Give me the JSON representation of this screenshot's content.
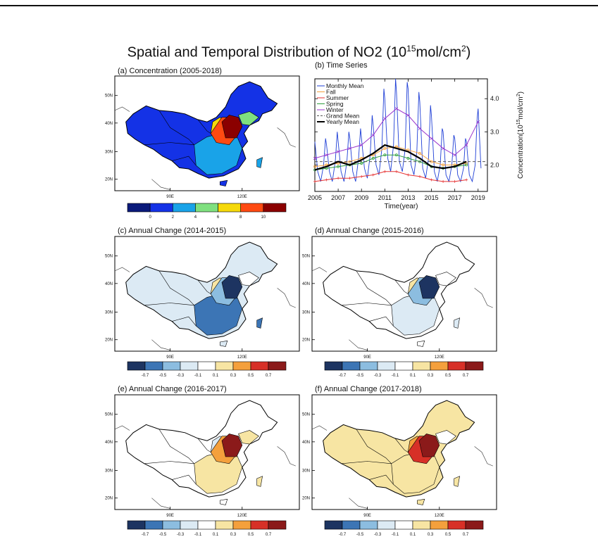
{
  "title": {
    "prefix": "Spatial and Temporal Distribution of NO2 (10",
    "exp1": "15",
    "middle": "mol/cm",
    "exp2": "2",
    "suffix": ")"
  },
  "panels": {
    "a": "(a) Concentration (2005-2018)",
    "b": "(b) Time Series",
    "c": "(c) Annual Change (2014-2015)",
    "d": "(d) Annual Change (2015-2016)",
    "e": "(e) Annual Change (2016-2017)",
    "f": "(f) Annual Change (2017-2018)"
  },
  "map_axes": {
    "lat_labels": [
      "50N",
      "40N",
      "30N",
      "20N"
    ],
    "lon_labels": [
      "90E",
      "120E"
    ]
  },
  "colorbars": {
    "concentration": {
      "colors": [
        "#0a1a7a",
        "#1432e6",
        "#19a3e8",
        "#7fe07f",
        "#f5d90a",
        "#ff4a12",
        "#8b0000"
      ],
      "labels": [
        "0",
        "2",
        "4",
        "6",
        "8",
        "10"
      ]
    },
    "change": {
      "colors": [
        "#1d3461",
        "#3c75b5",
        "#8cbde0",
        "#dceaf4",
        "#ffffff",
        "#f7e5a3",
        "#f4a03c",
        "#d73027",
        "#8b1a1a"
      ],
      "labels": [
        "-0.7",
        "-0.5",
        "-0.3",
        "-0.1",
        "0.1",
        "0.3",
        "0.5",
        "0.7"
      ]
    }
  },
  "map_palettes": {
    "a": {
      "base": "#1432e6",
      "mid": "#19a3e8",
      "hot": "#8b0000",
      "warm": "#ff4a12",
      "yellow": "#f5d90a",
      "green": "#7fe07f"
    },
    "c": {
      "base": "#dceaf4",
      "mid": "#3c75b5",
      "hot": "#1d3461",
      "warm": "#8cbde0",
      "yellow": "#f7e5a3",
      "green": "#ffffff"
    },
    "d": {
      "base": "#ffffff",
      "mid": "#dceaf4",
      "hot": "#1d3461",
      "warm": "#8cbde0",
      "yellow": "#f7e5a3",
      "green": "#ffffff"
    },
    "e": {
      "base": "#ffffff",
      "mid": "#f7e5a3",
      "hot": "#8b1a1a",
      "warm": "#f4a03c",
      "yellow": "#dceaf4",
      "green": "#f7e5a3"
    },
    "f": {
      "base": "#f7e5a3",
      "mid": "#f7e5a3",
      "hot": "#8b1a1a",
      "warm": "#d73027",
      "yellow": "#f4a03c",
      "green": "#ffffff"
    }
  },
  "chart_data": {
    "type": "line",
    "ylabel_prefix": "Concentration(10",
    "ylabel_exp1": "15",
    "ylabel_middle": "mol/cm",
    "ylabel_exp2": "2",
    "ylabel_suffix": ")",
    "xlabel": "Time(year)",
    "xlim": [
      2005,
      2019.8
    ],
    "ylim": [
      1.2,
      4.6
    ],
    "xticks": [
      2005,
      2007,
      2009,
      2011,
      2013,
      2015,
      2017,
      2019
    ],
    "yticks": [
      2.0,
      3.0,
      4.0
    ],
    "ytick_labels": [
      "2.0",
      "3.0",
      "4.0"
    ],
    "legend_position": "top-left",
    "series": [
      {
        "name": "Monthly Mean",
        "color": "#1f3fd6",
        "style": "monthly",
        "x": [
          2005.0,
          2005.25,
          2005.5,
          2005.75,
          2005.92,
          2006.0,
          2006.25,
          2006.5,
          2006.75,
          2006.92,
          2007.0,
          2007.25,
          2007.5,
          2007.75,
          2007.92,
          2008.0,
          2008.25,
          2008.5,
          2008.75,
          2008.92,
          2009.0,
          2009.25,
          2009.5,
          2009.75,
          2009.92,
          2010.0,
          2010.25,
          2010.5,
          2010.75,
          2010.92,
          2011.0,
          2011.25,
          2011.5,
          2011.75,
          2011.92,
          2012.0,
          2012.25,
          2012.5,
          2012.75,
          2012.92,
          2013.0,
          2013.25,
          2013.5,
          2013.75,
          2013.92,
          2014.0,
          2014.25,
          2014.5,
          2014.75,
          2014.92,
          2015.0,
          2015.25,
          2015.5,
          2015.75,
          2015.92,
          2016.0,
          2016.25,
          2016.5,
          2016.75,
          2016.92,
          2017.0,
          2017.25,
          2017.5,
          2017.75,
          2017.92,
          2018.0,
          2018.25,
          2018.5,
          2018.75,
          2018.92,
          2019.0,
          2019.25
        ],
        "y": [
          2.7,
          1.8,
          1.5,
          2.0,
          2.8,
          2.6,
          1.8,
          1.5,
          2.1,
          3.0,
          2.7,
          1.8,
          1.5,
          2.1,
          3.0,
          2.8,
          1.8,
          1.5,
          2.2,
          3.1,
          2.8,
          1.9,
          1.6,
          2.3,
          3.5,
          3.2,
          2.0,
          1.7,
          2.5,
          4.3,
          4.0,
          2.2,
          1.8,
          2.6,
          4.6,
          4.2,
          2.1,
          1.8,
          2.5,
          4.5,
          4.3,
          2.0,
          1.7,
          2.4,
          4.2,
          3.9,
          1.9,
          1.6,
          2.2,
          3.8,
          3.5,
          1.8,
          1.5,
          2.0,
          3.1,
          3.0,
          1.7,
          1.5,
          2.0,
          2.9,
          2.8,
          1.7,
          1.5,
          1.9,
          2.8,
          2.7,
          1.7,
          1.5,
          2.0,
          3.4,
          3.7,
          1.9
        ]
      },
      {
        "name": "Fall",
        "color": "#f4a03c",
        "marker": "circle",
        "x": [
          2005,
          2006,
          2007,
          2008,
          2009,
          2010,
          2011,
          2012,
          2013,
          2014,
          2015,
          2016,
          2017,
          2018
        ],
        "y": [
          1.95,
          2.0,
          2.05,
          2.1,
          2.2,
          2.3,
          2.5,
          2.55,
          2.45,
          2.35,
          2.1,
          2.0,
          2.0,
          2.05
        ]
      },
      {
        "name": "Summer",
        "color": "#e63232",
        "marker": "plus",
        "x": [
          2005,
          2006,
          2007,
          2008,
          2009,
          2010,
          2011,
          2012,
          2013,
          2014,
          2015,
          2016,
          2017,
          2018
        ],
        "y": [
          1.5,
          1.55,
          1.6,
          1.6,
          1.65,
          1.7,
          1.8,
          1.8,
          1.7,
          1.65,
          1.55,
          1.5,
          1.5,
          1.55
        ]
      },
      {
        "name": "Spring",
        "color": "#2e9e3e",
        "marker": "circle",
        "x": [
          2005,
          2006,
          2007,
          2008,
          2009,
          2010,
          2011,
          2012,
          2013,
          2014,
          2015,
          2016,
          2017,
          2018
        ],
        "y": [
          1.85,
          1.9,
          1.95,
          2.0,
          2.05,
          2.2,
          2.3,
          2.3,
          2.2,
          2.1,
          1.95,
          1.9,
          1.95,
          2.0
        ]
      },
      {
        "name": "Winter",
        "color": "#9933cc",
        "marker": "cross",
        "x": [
          2005,
          2006,
          2007,
          2008,
          2009,
          2010,
          2011,
          2012,
          2013,
          2014,
          2015,
          2016,
          2017,
          2018,
          2019
        ],
        "y": [
          2.2,
          2.3,
          2.4,
          2.5,
          2.6,
          2.9,
          3.4,
          3.7,
          3.5,
          3.1,
          2.8,
          2.5,
          2.3,
          2.6,
          3.3
        ]
      },
      {
        "name": "Grand Mean",
        "color": "#555555",
        "style": "dashed",
        "x": [
          2005,
          2019.8
        ],
        "y": [
          2.1,
          2.1
        ]
      },
      {
        "name": "Yearly Mean",
        "color": "#000000",
        "style": "thick",
        "x": [
          2005,
          2006,
          2007,
          2008,
          2009,
          2010,
          2011,
          2012,
          2013,
          2014,
          2015,
          2016,
          2017,
          2018
        ],
        "y": [
          1.85,
          1.95,
          2.1,
          2.0,
          2.15,
          2.35,
          2.6,
          2.5,
          2.4,
          2.2,
          1.95,
          1.9,
          1.95,
          2.1
        ]
      }
    ]
  }
}
